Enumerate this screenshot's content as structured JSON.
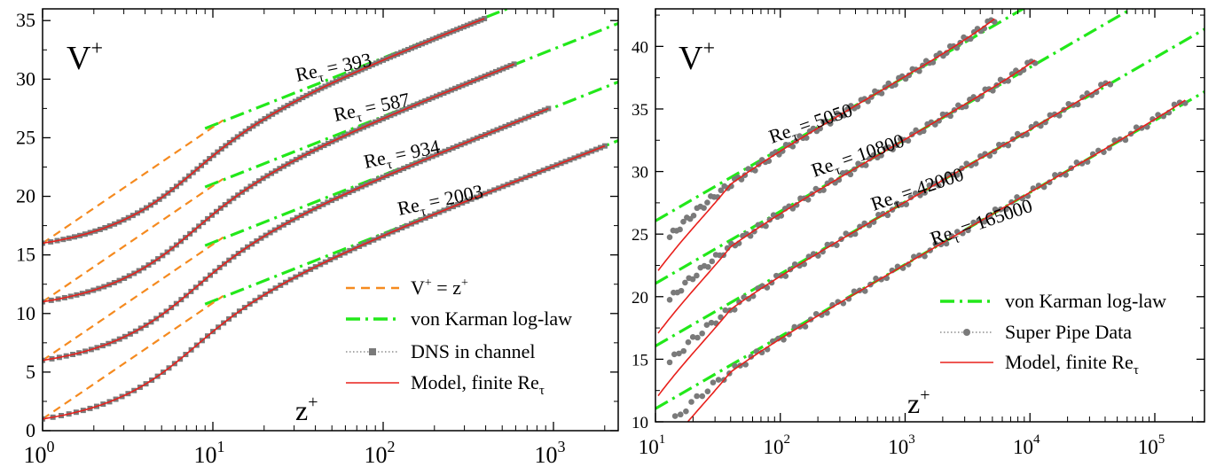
{
  "chart_data": [
    {
      "type": "line",
      "panel": "left",
      "xscale": "log",
      "xlim": [
        1,
        2400
      ],
      "ylim": [
        0,
        36
      ],
      "ylabel_text": "V",
      "ylabel_sup": "+",
      "xlabel_text": "z",
      "xlabel_sup": "+",
      "yticks": [
        "0",
        "5",
        "10",
        "15",
        "20",
        "25",
        "30",
        "35"
      ],
      "ytick_values": [
        0,
        5,
        10,
        15,
        20,
        25,
        30,
        35
      ],
      "xticks": [
        {
          "base": "10",
          "exp": "0"
        },
        {
          "base": "10",
          "exp": "1"
        },
        {
          "base": "10",
          "exp": "2"
        },
        {
          "base": "10",
          "exp": "3"
        }
      ],
      "curve_labels": [
        {
          "text": "Re",
          "sub": "τ",
          "value": " = 393"
        },
        {
          "text": "Re",
          "sub": "τ",
          "value": " = 587"
        },
        {
          "text": "Re",
          "sub": "τ",
          "value": " = 934"
        },
        {
          "text": "Re",
          "sub": "τ",
          "value": " = 2003"
        }
      ],
      "legend": [
        {
          "label": "V",
          "sup1": "+",
          "rest": " = z",
          "sup2": "+",
          "style": "dash-orange"
        },
        {
          "label": "von Karman log-law",
          "style": "dashdot-green"
        },
        {
          "label": "DNS in channel",
          "style": "dotted-square-gray"
        },
        {
          "label": "Model, finite Re",
          "sub": "τ",
          "style": "solid-red"
        }
      ],
      "series": [
        {
          "Re_tau": 393,
          "offset": 15,
          "zmax": 393,
          "V_end": 35.2
        },
        {
          "Re_tau": 587,
          "offset": 10,
          "zmax": 587,
          "V_end": 31.3
        },
        {
          "Re_tau": 934,
          "offset": 5,
          "zmax": 934,
          "V_end": 27.5
        },
        {
          "Re_tau": 2003,
          "offset": 0,
          "zmax": 2003,
          "V_end": 24.3
        }
      ],
      "loglaw": {
        "kappa": 0.4,
        "B": 5.3,
        "z_from": 9
      }
    },
    {
      "type": "line",
      "panel": "right",
      "xscale": "log",
      "xlim": [
        10,
        250000
      ],
      "ylim": [
        10,
        43
      ],
      "ylabel_text": "V",
      "ylabel_sup": "+",
      "xlabel_text": "z",
      "xlabel_sup": "+",
      "yticks": [
        "10",
        "15",
        "20",
        "25",
        "30",
        "35",
        "40"
      ],
      "ytick_values": [
        10,
        15,
        20,
        25,
        30,
        35,
        40
      ],
      "xticks": [
        {
          "base": "10",
          "exp": "1"
        },
        {
          "base": "10",
          "exp": "2"
        },
        {
          "base": "10",
          "exp": "3"
        },
        {
          "base": "10",
          "exp": "4"
        },
        {
          "base": "10",
          "exp": "5"
        }
      ],
      "curve_labels": [
        {
          "text": "Re",
          "sub": "τ",
          "value": " = 5050"
        },
        {
          "text": "Re",
          "sub": "τ",
          "value": " = 10800"
        },
        {
          "text": "Re",
          "sub": "τ",
          "value": " = 42000"
        },
        {
          "text": "Re",
          "sub": "τ",
          "value": " = 165000"
        }
      ],
      "legend": [
        {
          "label": "von Karman log-law",
          "style": "dashdot-green"
        },
        {
          "label": "Super Pipe Data",
          "style": "dotted-circle-gray"
        },
        {
          "label": "Model, finite Re",
          "sub": "τ",
          "style": "solid-red"
        }
      ],
      "series": [
        {
          "Re_tau": 5050,
          "offset": 15,
          "zmax": 5200,
          "V_end": 42.2
        },
        {
          "Re_tau": 10800,
          "offset": 10,
          "zmax": 11000,
          "V_end": 38.9
        },
        {
          "Re_tau": 42000,
          "offset": 5,
          "zmax": 44000,
          "V_end": 37.2
        },
        {
          "Re_tau": 165000,
          "offset": 0,
          "zmax": 175000,
          "V_end": 35.7
        }
      ],
      "loglaw": {
        "kappa": 0.4,
        "B": 5.3,
        "z_from": 10
      }
    }
  ],
  "colors": {
    "model": "#e8201c",
    "loglaw": "#22e81a",
    "linear": "#f58a1f",
    "data": "#7a7a7a"
  }
}
